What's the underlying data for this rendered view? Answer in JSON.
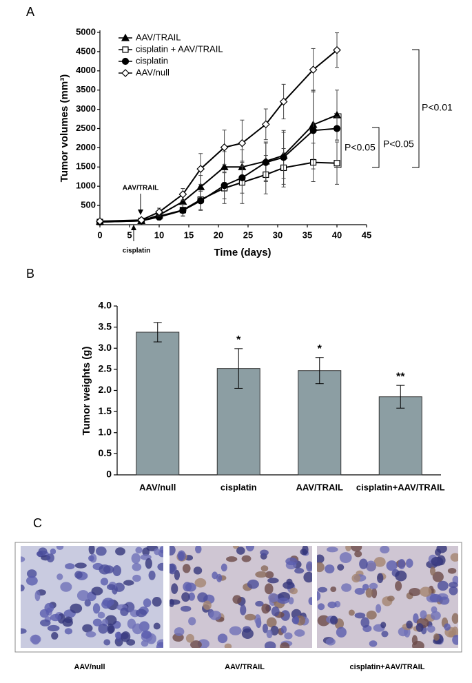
{
  "chart_data": [
    {
      "type": "line",
      "panel": "A",
      "xlabel": "Time (days)",
      "ylabel": "Tumor volumes (mm³)",
      "x": [
        0,
        7,
        10,
        14,
        17,
        21,
        24,
        28,
        31,
        36,
        40
      ],
      "xlim": [
        0,
        45
      ],
      "xticks": [
        0,
        5,
        10,
        15,
        20,
        25,
        30,
        35,
        40,
        45
      ],
      "ylim": [
        0,
        5000
      ],
      "yticks": [
        500,
        1000,
        1500,
        2000,
        2500,
        3000,
        3500,
        4000,
        4500,
        5000
      ],
      "series": [
        {
          "name": "AAV/TRAIL",
          "color": "#000000",
          "marker": "triangle",
          "values": [
            80,
            100,
            250,
            600,
            980,
            1500,
            1500,
            1650,
            1800,
            2600,
            2850
          ],
          "errors": [
            20,
            30,
            80,
            150,
            300,
            400,
            450,
            500,
            600,
            900,
            650
          ]
        },
        {
          "name": "cisplatin + AAV/TRAIL",
          "color": "#000000",
          "marker": "square",
          "values": [
            70,
            100,
            220,
            380,
            650,
            950,
            1100,
            1300,
            1480,
            1620,
            1600
          ],
          "errors": [
            20,
            30,
            80,
            150,
            250,
            400,
            550,
            500,
            500,
            500,
            550
          ]
        },
        {
          "name": "cisplatin",
          "color": "#000000",
          "marker": "circle",
          "values": [
            70,
            100,
            200,
            370,
            620,
            1020,
            1220,
            1620,
            1750,
            2450,
            2500
          ],
          "errors": [
            20,
            30,
            80,
            150,
            250,
            350,
            400,
            500,
            700,
            1000,
            300
          ]
        },
        {
          "name": "AAV/null",
          "color": "#000000",
          "marker": "diamond",
          "values": [
            90,
            120,
            330,
            790,
            1450,
            2010,
            2120,
            2610,
            3200,
            4030,
            4540
          ],
          "errors": [
            20,
            40,
            100,
            150,
            400,
            450,
            600,
            400,
            450,
            550,
            450
          ]
        }
      ],
      "annotations": {
        "arrow_top": "AAV/TRAIL",
        "arrow_bottom": "cisplatin",
        "p1": "P<0.01",
        "p2": "P<0.05",
        "p3": "P<0.05"
      }
    },
    {
      "type": "bar",
      "panel": "B",
      "ylabel": "Tumor weights (g)",
      "categories": [
        "AAV/null",
        "cisplatin",
        "AAV/TRAIL",
        "cisplatin+AAV/TRAIL"
      ],
      "values": [
        3.38,
        2.52,
        2.47,
        1.85
      ],
      "errors": [
        0.23,
        0.47,
        0.31,
        0.27
      ],
      "significance": [
        null,
        "*",
        "*",
        "**"
      ],
      "color": "#8c9ea3",
      "ylim": [
        0,
        4
      ],
      "yticks": [
        0,
        {
          "value": 0.5,
          "label": "0.5"
        },
        {
          "value": 1,
          "label": "1.0"
        },
        {
          "value": 1.5,
          "label": "1.5"
        },
        {
          "value": 2,
          "label": "2.0"
        },
        {
          "value": 2.5,
          "label": "2.5"
        },
        {
          "value": 3,
          "label": "3.0"
        },
        {
          "value": 3.5,
          "label": "3.5"
        },
        {
          "value": 4,
          "label": "4.0"
        }
      ]
    }
  ],
  "panel_c": {
    "label": "C",
    "captions": [
      "AAV/null",
      "AAV/TRAIL",
      "cisplatin+AAV/TRAIL"
    ]
  }
}
